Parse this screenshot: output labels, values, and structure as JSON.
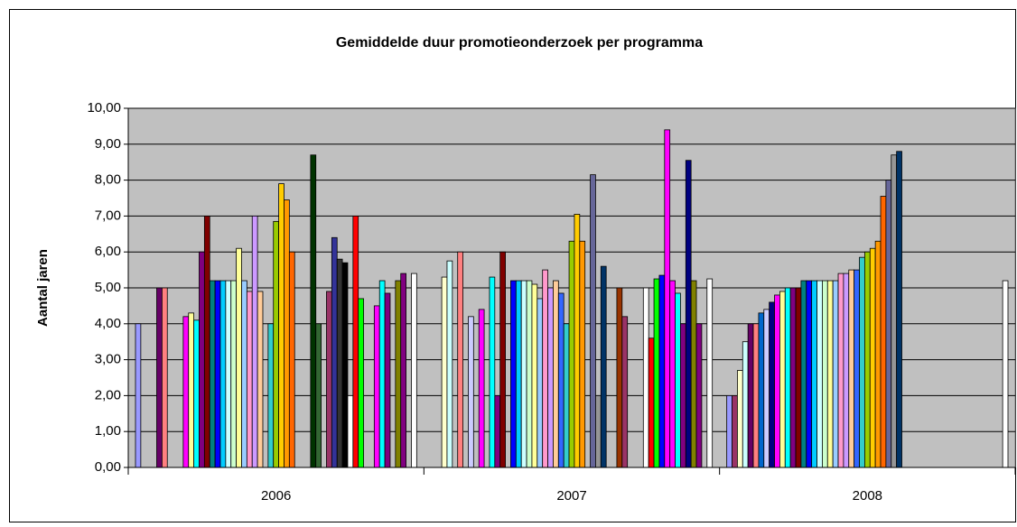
{
  "chart_data": {
    "type": "bar",
    "title": "Gemiddelde duur promotieonderzoek per programma",
    "y_label": "Aantal jaren",
    "categories": [
      "2006",
      "2007",
      "2008"
    ],
    "ylim": [
      0,
      10
    ],
    "yticks": [
      {
        "value": 0,
        "label": "0,00"
      },
      {
        "value": 1,
        "label": "1,00"
      },
      {
        "value": 2,
        "label": "2,00"
      },
      {
        "value": 3,
        "label": "3,00"
      },
      {
        "value": 4,
        "label": "4,00"
      },
      {
        "value": 5,
        "label": "5,00"
      },
      {
        "value": 6,
        "label": "6,00"
      },
      {
        "value": 7,
        "label": "7,00"
      },
      {
        "value": 8,
        "label": "8,00"
      },
      {
        "value": 9,
        "label": "9,00"
      },
      {
        "value": 10,
        "label": "10,00"
      }
    ],
    "grid": true,
    "series": [
      {
        "color": "#9999ff",
        "values": [
          4.0,
          null,
          2.0
        ]
      },
      {
        "color": "#993366",
        "values": [
          null,
          null,
          2.0
        ]
      },
      {
        "color": "#ffffcc",
        "values": [
          null,
          5.3,
          2.7
        ]
      },
      {
        "color": "#ccffff",
        "values": [
          null,
          5.75,
          3.5
        ]
      },
      {
        "color": "#660066",
        "values": [
          5.0,
          null,
          4.0
        ]
      },
      {
        "color": "#ff8080",
        "values": [
          5.0,
          6.0,
          4.0
        ]
      },
      {
        "color": "#0066cc",
        "values": [
          null,
          null,
          4.3
        ]
      },
      {
        "color": "#ccccff",
        "values": [
          null,
          4.2,
          4.4
        ]
      },
      {
        "color": "#000080",
        "values": [
          null,
          null,
          4.6
        ]
      },
      {
        "color": "#ff00ff",
        "values": [
          4.2,
          4.4,
          4.8
        ]
      },
      {
        "color": "#ffff99",
        "values": [
          4.3,
          null,
          4.9
        ]
      },
      {
        "color": "#00ffff",
        "values": [
          4.1,
          5.3,
          5.0
        ]
      },
      {
        "color": "#800080",
        "values": [
          6.0,
          2.0,
          5.0
        ]
      },
      {
        "color": "#800000",
        "values": [
          7.0,
          6.0,
          5.0
        ]
      },
      {
        "color": "#008080",
        "values": [
          5.2,
          null,
          5.2
        ]
      },
      {
        "color": "#0000ff",
        "values": [
          5.2,
          5.2,
          5.2
        ]
      },
      {
        "color": "#00ccff",
        "values": [
          5.2,
          5.2,
          5.2
        ]
      },
      {
        "color": "#ccffff",
        "values": [
          5.2,
          5.2,
          5.2
        ]
      },
      {
        "color": "#ccffcc",
        "values": [
          5.2,
          5.2,
          5.2
        ]
      },
      {
        "color": "#ffff99",
        "values": [
          6.1,
          5.1,
          5.2
        ]
      },
      {
        "color": "#99ccff",
        "values": [
          5.2,
          4.7,
          5.2
        ]
      },
      {
        "color": "#ff99cc",
        "values": [
          4.9,
          5.5,
          5.4
        ]
      },
      {
        "color": "#cc99ff",
        "values": [
          7.0,
          5.0,
          5.4
        ]
      },
      {
        "color": "#ffcc99",
        "values": [
          4.9,
          5.2,
          5.5
        ]
      },
      {
        "color": "#3366ff",
        "values": [
          null,
          4.85,
          5.5
        ]
      },
      {
        "color": "#33cccc",
        "values": [
          4.0,
          4.0,
          5.85
        ]
      },
      {
        "color": "#99cc00",
        "values": [
          6.85,
          6.3,
          6.0
        ]
      },
      {
        "color": "#ffcc00",
        "values": [
          7.9,
          7.05,
          6.1
        ]
      },
      {
        "color": "#ff9900",
        "values": [
          7.45,
          6.3,
          6.3
        ]
      },
      {
        "color": "#ff6600",
        "values": [
          6.0,
          null,
          7.55
        ]
      },
      {
        "color": "#666699",
        "values": [
          null,
          8.15,
          8.0
        ]
      },
      {
        "color": "#969696",
        "values": [
          null,
          2.0,
          8.7
        ]
      },
      {
        "color": "#003366",
        "values": [
          null,
          5.6,
          8.8
        ]
      },
      {
        "color": "#003300",
        "values": [
          8.7,
          null,
          null
        ]
      },
      {
        "color": "#336633",
        "values": [
          4.0,
          null,
          null
        ]
      },
      {
        "color": "#993300",
        "values": [
          null,
          5.0,
          null
        ]
      },
      {
        "color": "#993366",
        "values": [
          4.9,
          4.2,
          null
        ]
      },
      {
        "color": "#333399",
        "values": [
          6.4,
          null,
          null
        ]
      },
      {
        "color": "#333333",
        "values": [
          5.8,
          null,
          null
        ]
      },
      {
        "color": "#000000",
        "values": [
          5.7,
          null,
          null
        ]
      },
      {
        "color": "#ffffff",
        "values": [
          2.0,
          5.0,
          null
        ]
      },
      {
        "color": "#ff0000",
        "values": [
          7.0,
          3.6,
          null
        ]
      },
      {
        "color": "#00ff00",
        "values": [
          4.7,
          5.25,
          null
        ]
      },
      {
        "color": "#0000ff",
        "values": [
          null,
          5.35,
          null
        ]
      },
      {
        "color": "#ff00ff",
        "values": [
          null,
          9.4,
          null
        ]
      },
      {
        "color": "#ff00ff",
        "values": [
          4.5,
          5.2,
          null
        ]
      },
      {
        "color": "#00ffff",
        "values": [
          5.2,
          4.85,
          null
        ]
      },
      {
        "color": "#800080",
        "values": [
          4.85,
          4.0,
          null
        ]
      },
      {
        "color": "#000080",
        "values": [
          null,
          8.55,
          null
        ]
      },
      {
        "color": "#808000",
        "values": [
          5.2,
          5.2,
          null
        ]
      },
      {
        "color": "#800080",
        "values": [
          5.4,
          4.0,
          null
        ]
      },
      {
        "color": "#808080",
        "values": [
          null,
          null,
          null
        ]
      },
      {
        "color": "#ffffff",
        "values": [
          5.4,
          5.25,
          5.2
        ]
      }
    ]
  }
}
